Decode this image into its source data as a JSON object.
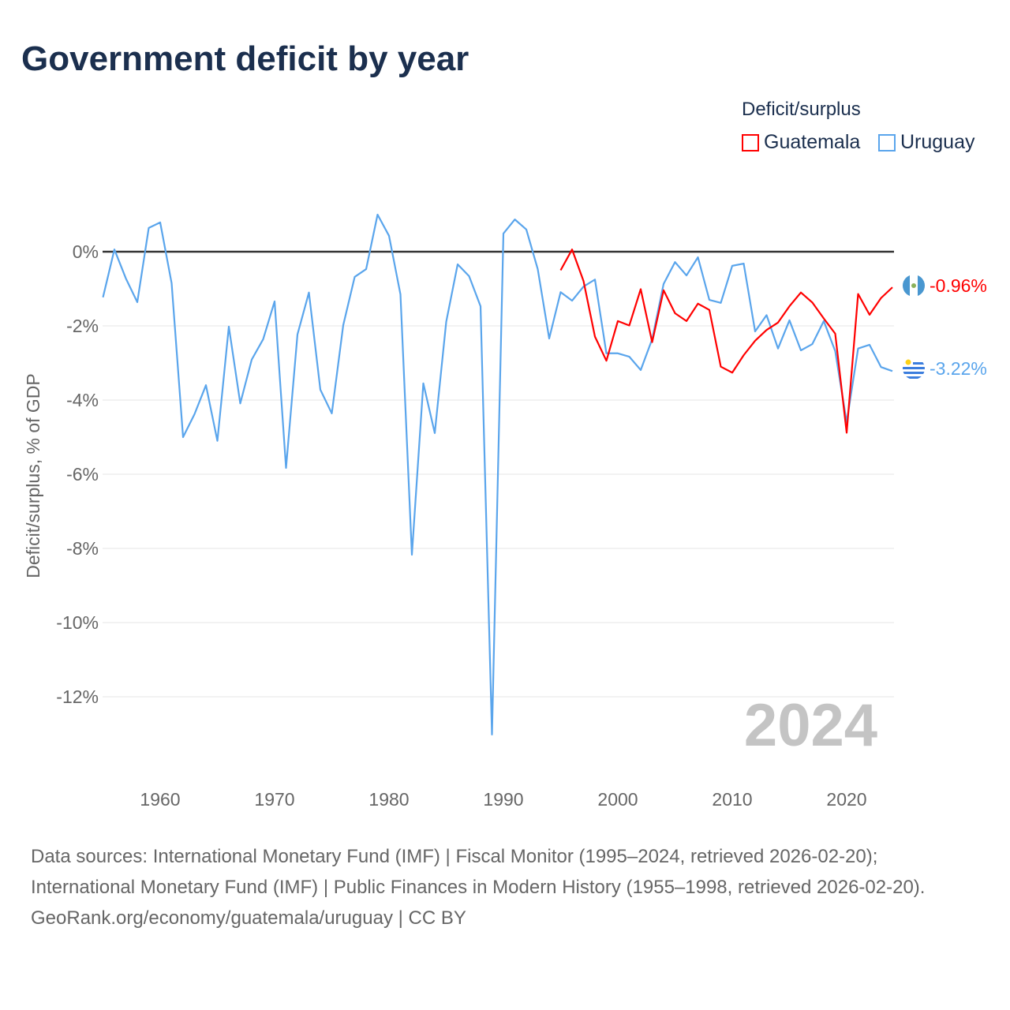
{
  "title": "Government deficit by year",
  "legend": {
    "title": "Deficit/surplus",
    "items": [
      "Guatemala",
      "Uruguay"
    ]
  },
  "year_watermark": "2024",
  "end_labels": {
    "guatemala": "-0.96%",
    "uruguay": "-3.22%"
  },
  "flags": {
    "guatemala": "guatemala-flag",
    "uruguay": "uruguay-flag"
  },
  "sources": {
    "line1": "Data sources: International Monetary Fund (IMF) | Fiscal Monitor (1995–2024, retrieved 2026-02-20); International Monetary Fund (IMF) | Public Finances in Modern History (1955–1998, retrieved 2026-02-20).",
    "line2": "GeoRank.org/economy/guatemala/uruguay | CC BY"
  },
  "chart_data": {
    "type": "line",
    "title": "Government deficit by year",
    "xlabel": "",
    "ylabel": "Deficit/surplus, % of GDP",
    "xlim": [
      1955,
      2024
    ],
    "ylim": [
      -13.5,
      1.5
    ],
    "xticks": [
      1960,
      1970,
      1980,
      1990,
      2000,
      2010,
      2020
    ],
    "yticks": [
      0,
      -2,
      -4,
      -6,
      -8,
      -10,
      -12
    ],
    "ytick_labels": [
      "0%",
      "-2%",
      "-4%",
      "-6%",
      "-8%",
      "-10%",
      "-12%"
    ],
    "legend_position": "top-right",
    "series": [
      {
        "name": "Guatemala",
        "color": "#ff0000",
        "x_start": 1995,
        "values": [
          -0.5,
          0.06,
          -0.79,
          -2.29,
          -2.94,
          -1.87,
          -1.99,
          -1.01,
          -2.44,
          -1.04,
          -1.66,
          -1.87,
          -1.4,
          -1.57,
          -3.1,
          -3.26,
          -2.79,
          -2.4,
          -2.11,
          -1.91,
          -1.47,
          -1.1,
          -1.37,
          -1.8,
          -2.21,
          -4.88,
          -1.14,
          -1.7,
          -1.25,
          -0.96
        ]
      },
      {
        "name": "Uruguay",
        "color": "#5aa5ec",
        "x_start": 1955,
        "values": [
          -1.23,
          0.06,
          -0.72,
          -1.36,
          0.64,
          0.79,
          -0.85,
          -5.0,
          -4.38,
          -3.6,
          -5.1,
          -2.02,
          -4.09,
          -2.91,
          -2.36,
          -1.34,
          -5.83,
          -2.23,
          -1.1,
          -3.72,
          -4.36,
          -1.98,
          -0.68,
          -0.47,
          1.0,
          0.43,
          -1.15,
          -8.17,
          -3.55,
          -4.89,
          -1.89,
          -0.34,
          -0.66,
          -1.47,
          -13.02,
          0.49,
          0.87,
          0.6,
          -0.47,
          -2.34,
          -1.09,
          -1.32,
          -0.94,
          -0.75,
          -2.74,
          -2.74,
          -2.83,
          -3.19,
          -2.36,
          -0.87,
          -0.28,
          -0.64,
          -0.15,
          -1.3,
          -1.38,
          -0.38,
          -0.32,
          -2.15,
          -1.71,
          -2.61,
          -1.85,
          -2.66,
          -2.49,
          -1.87,
          -2.68,
          -4.6,
          -2.61,
          -2.51,
          -3.11,
          -3.22
        ]
      }
    ]
  }
}
